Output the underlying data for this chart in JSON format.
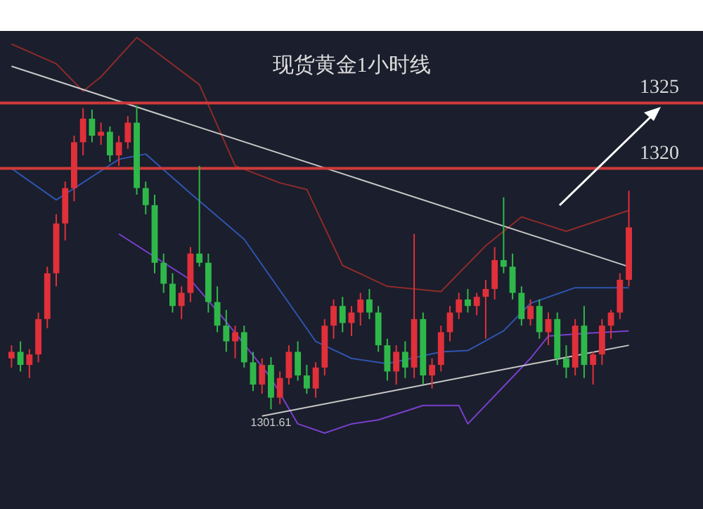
{
  "chart_data": {
    "type": "candlestick",
    "title": "现货黄金1小时线",
    "categories": [
      null,
      null,
      null,
      null,
      null,
      null,
      null,
      null,
      null,
      null,
      null,
      null,
      null,
      null,
      null,
      null,
      null,
      null,
      null,
      null,
      null,
      null,
      null,
      null,
      null,
      null,
      null,
      null,
      null,
      null,
      null,
      null,
      null,
      null,
      null,
      null,
      null,
      null,
      null,
      null,
      null,
      null,
      null,
      null,
      null,
      null,
      null,
      null,
      null,
      null,
      null,
      null,
      null,
      null,
      null,
      null,
      null,
      null,
      null,
      null,
      null,
      null,
      null,
      null,
      null,
      null,
      null,
      null,
      null,
      null
    ],
    "ylim": [
      1294,
      1330.5
    ],
    "ohlc": [
      [
        1305.5,
        1306.5,
        1304.8,
        1306.0
      ],
      [
        1306.0,
        1306.8,
        1304.5,
        1305.0
      ],
      [
        1305.0,
        1306.2,
        1304.0,
        1305.8
      ],
      [
        1305.8,
        1309.0,
        1305.2,
        1308.5
      ],
      [
        1308.5,
        1312.5,
        1307.8,
        1312.0
      ],
      [
        1312.0,
        1316.5,
        1311.0,
        1315.8
      ],
      [
        1315.8,
        1319.0,
        1314.5,
        1318.5
      ],
      [
        1318.5,
        1322.5,
        1317.5,
        1322.0
      ],
      [
        1322.0,
        1324.6,
        1321.0,
        1323.8
      ],
      [
        1323.8,
        1324.5,
        1322.0,
        1322.5
      ],
      [
        1322.5,
        1323.5,
        1321.8,
        1322.8
      ],
      [
        1322.8,
        1323.2,
        1320.5,
        1321.0
      ],
      [
        1321.0,
        1322.5,
        1320.2,
        1322.0
      ],
      [
        1322.0,
        1324.0,
        1321.5,
        1323.5
      ],
      [
        1323.5,
        1324.8,
        1318.0,
        1318.5
      ],
      [
        1318.5,
        1319.0,
        1316.5,
        1317.2
      ],
      [
        1317.2,
        1318.0,
        1312.0,
        1312.8
      ],
      [
        1312.8,
        1313.5,
        1310.5,
        1311.2
      ],
      [
        1311.2,
        1312.0,
        1309.0,
        1309.5
      ],
      [
        1309.5,
        1311.0,
        1308.5,
        1310.5
      ],
      [
        1310.5,
        1314.0,
        1309.8,
        1313.5
      ],
      [
        1313.5,
        1320.2,
        1312.5,
        1312.8
      ],
      [
        1312.8,
        1313.5,
        1309.0,
        1309.8
      ],
      [
        1309.8,
        1311.0,
        1307.5,
        1308.0
      ],
      [
        1308.0,
        1309.2,
        1306.0,
        1306.8
      ],
      [
        1306.8,
        1308.0,
        1305.5,
        1307.5
      ],
      [
        1307.5,
        1308.0,
        1304.8,
        1305.2
      ],
      [
        1305.2,
        1306.0,
        1303.0,
        1303.5
      ],
      [
        1303.5,
        1305.5,
        1302.8,
        1305.0
      ],
      [
        1305.0,
        1305.6,
        1301.61,
        1302.5
      ],
      [
        1302.5,
        1304.5,
        1302.0,
        1304.0
      ],
      [
        1304.0,
        1306.5,
        1303.5,
        1306.0
      ],
      [
        1306.0,
        1306.8,
        1303.8,
        1304.2
      ],
      [
        1304.2,
        1305.0,
        1302.8,
        1303.2
      ],
      [
        1303.2,
        1305.2,
        1302.5,
        1304.8
      ],
      [
        1304.8,
        1308.5,
        1304.2,
        1308.0
      ],
      [
        1308.0,
        1310.0,
        1307.0,
        1309.5
      ],
      [
        1309.5,
        1310.2,
        1307.5,
        1308.2
      ],
      [
        1308.2,
        1309.5,
        1307.2,
        1309.0
      ],
      [
        1309.0,
        1310.5,
        1308.0,
        1310.0
      ],
      [
        1310.0,
        1310.8,
        1308.5,
        1309.0
      ],
      [
        1309.0,
        1309.5,
        1306.0,
        1306.5
      ],
      [
        1306.5,
        1307.0,
        1303.8,
        1304.5
      ],
      [
        1304.5,
        1306.5,
        1303.5,
        1306.0
      ],
      [
        1306.0,
        1306.8,
        1304.0,
        1304.8
      ],
      [
        1304.8,
        1315.0,
        1304.0,
        1308.5
      ],
      [
        1308.5,
        1309.0,
        1303.5,
        1304.2
      ],
      [
        1304.2,
        1305.5,
        1303.2,
        1305.0
      ],
      [
        1305.0,
        1308.0,
        1304.5,
        1307.5
      ],
      [
        1307.5,
        1309.5,
        1306.8,
        1309.0
      ],
      [
        1309.0,
        1310.5,
        1308.5,
        1310.0
      ],
      [
        1310.0,
        1310.8,
        1309.0,
        1309.5
      ],
      [
        1309.5,
        1310.5,
        1308.8,
        1310.2
      ],
      [
        1310.2,
        1311.5,
        1307.0,
        1310.8
      ],
      [
        1310.8,
        1314.0,
        1310.0,
        1313.0
      ],
      [
        1313.0,
        1317.8,
        1312.0,
        1312.5
      ],
      [
        1312.5,
        1313.5,
        1310.0,
        1310.5
      ],
      [
        1310.5,
        1311.0,
        1308.0,
        1308.5
      ],
      [
        1308.5,
        1310.0,
        1308.0,
        1309.5
      ],
      [
        1309.5,
        1310.0,
        1307.0,
        1307.5
      ],
      [
        1307.5,
        1309.0,
        1306.5,
        1308.5
      ],
      [
        1308.5,
        1309.0,
        1305.0,
        1305.5
      ],
      [
        1305.5,
        1306.5,
        1304.0,
        1304.8
      ],
      [
        1304.8,
        1308.5,
        1304.2,
        1308.0
      ],
      [
        1308.0,
        1309.5,
        1304.0,
        1305.0
      ],
      [
        1305.0,
        1306.0,
        1303.5,
        1305.8
      ],
      [
        1305.8,
        1308.5,
        1305.0,
        1308.0
      ],
      [
        1308.0,
        1309.2,
        1307.0,
        1309.0
      ],
      [
        1309.0,
        1312.0,
        1308.5,
        1311.5
      ],
      [
        1311.5,
        1318.3,
        1311.0,
        1315.5
      ]
    ],
    "colors": [
      "#e0303a",
      "#2fb84a",
      "#e0303a",
      "#e0303a",
      "#e0303a",
      "#e0303a",
      "#e0303a",
      "#e0303a",
      "#e0303a",
      "#2fb84a",
      "#e0303a",
      "#2fb84a",
      "#e0303a",
      "#e0303a",
      "#2fb84a",
      "#2fb84a",
      "#2fb84a",
      "#2fb84a",
      "#2fb84a",
      "#e0303a",
      "#e0303a",
      "#2fb84a",
      "#2fb84a",
      "#2fb84a",
      "#2fb84a",
      "#e0303a",
      "#2fb84a",
      "#2fb84a",
      "#e0303a",
      "#2fb84a",
      "#e0303a",
      "#e0303a",
      "#2fb84a",
      "#2fb84a",
      "#e0303a",
      "#e0303a",
      "#e0303a",
      "#2fb84a",
      "#e0303a",
      "#e0303a",
      "#2fb84a",
      "#2fb84a",
      "#2fb84a",
      "#e0303a",
      "#2fb84a",
      "#e0303a",
      "#2fb84a",
      "#e0303a",
      "#e0303a",
      "#e0303a",
      "#e0303a",
      "#2fb84a",
      "#e0303a",
      "#e0303a",
      "#e0303a",
      "#2fb84a",
      "#2fb84a",
      "#2fb84a",
      "#e0303a",
      "#2fb84a",
      "#e0303a",
      "#2fb84a",
      "#2fb84a",
      "#e0303a",
      "#2fb84a",
      "#e0303a",
      "#e0303a",
      "#e0303a",
      "#e0303a",
      "#e0303a"
    ],
    "series": [
      {
        "type": "line",
        "color": "#8e2b2b",
        "values": [
          1329.5,
          null,
          null,
          null,
          null,
          1328.0,
          null,
          null,
          1325.9,
          null,
          1327.0,
          null,
          null,
          null,
          1330.0,
          null,
          null,
          null,
          null,
          null,
          null,
          1326.4,
          null,
          null,
          null,
          1320.2,
          null,
          null,
          null,
          null,
          1318.9,
          null,
          null,
          1318.4,
          null,
          null,
          null,
          1312.6,
          null,
          null,
          null,
          null,
          1311.0,
          null,
          null,
          null,
          null,
          null,
          1310.6,
          null,
          null,
          null,
          null,
          1314.1,
          null,
          null,
          null,
          1316.3,
          null,
          null,
          null,
          null,
          1315.2,
          null,
          null,
          null,
          null,
          null,
          null,
          1316.8
        ]
      },
      {
        "type": "line",
        "color": "#2f55b0",
        "values": [
          1320.0,
          null,
          null,
          null,
          null,
          1317.6,
          null,
          null,
          null,
          null,
          null,
          null,
          1320.7,
          null,
          null,
          1321.1,
          null,
          null,
          null,
          null,
          1318.1,
          null,
          null,
          null,
          null,
          null,
          1314.6,
          null,
          null,
          null,
          null,
          null,
          null,
          null,
          1306.8,
          null,
          null,
          null,
          1305.5,
          null,
          null,
          null,
          1305.1,
          null,
          null,
          null,
          null,
          null,
          1306.0,
          null,
          null,
          1306.1,
          null,
          null,
          null,
          1307.6,
          null,
          null,
          1309.7,
          null,
          null,
          null,
          null,
          1310.9,
          null,
          null,
          null,
          null,
          null,
          1310.9
        ]
      },
      {
        "type": "line",
        "color": "#7a3fd0",
        "values": [
          null,
          null,
          null,
          null,
          null,
          null,
          null,
          null,
          null,
          null,
          null,
          null,
          1315.0,
          null,
          null,
          null,
          null,
          null,
          null,
          null,
          1311.5,
          null,
          null,
          null,
          1308.3,
          null,
          null,
          null,
          null,
          1304.0,
          null,
          null,
          1300.5,
          null,
          null,
          1299.8,
          null,
          null,
          1300.5,
          null,
          null,
          1300.8,
          null,
          null,
          null,
          null,
          1301.9,
          null,
          null,
          null,
          1301.9,
          1300.5,
          null,
          null,
          null,
          null,
          null,
          null,
          1305.5,
          null,
          1307.2,
          null,
          null,
          null,
          1307.4,
          null,
          null,
          null,
          null,
          1307.6
        ]
      },
      {
        "type": "line",
        "color": "#c8c8c8",
        "values": [
          1327.8,
          null,
          null,
          null,
          null,
          null,
          null,
          null,
          null,
          null,
          null,
          null,
          null,
          null,
          null,
          null,
          null,
          null,
          null,
          null,
          null,
          null,
          null,
          null,
          null,
          null,
          null,
          null,
          null,
          null,
          null,
          null,
          null,
          null,
          null,
          null,
          null,
          null,
          null,
          null,
          null,
          null,
          null,
          null,
          null,
          null,
          null,
          null,
          null,
          null,
          null,
          null,
          null,
          null,
          null,
          null,
          null,
          null,
          null,
          null,
          null,
          null,
          null,
          null,
          null,
          null,
          null,
          null,
          null,
          1312.5
        ]
      },
      {
        "type": "line",
        "color": "#c8c8c8",
        "values": [
          null,
          null,
          null,
          null,
          null,
          null,
          null,
          null,
          null,
          null,
          null,
          null,
          null,
          null,
          null,
          null,
          null,
          null,
          null,
          null,
          null,
          null,
          null,
          null,
          null,
          null,
          null,
          null,
          1301.1,
          null,
          null,
          null,
          null,
          null,
          null,
          null,
          null,
          null,
          null,
          null,
          null,
          null,
          null,
          null,
          null,
          null,
          null,
          null,
          null,
          null,
          null,
          null,
          null,
          null,
          null,
          null,
          null,
          null,
          null,
          null,
          null,
          null,
          null,
          null,
          null,
          null,
          null,
          null,
          null,
          1306.5
        ]
      }
    ],
    "ref_lines": [
      {
        "axis": "y",
        "value": 1325,
        "label": "1325",
        "color": "#d03a3a"
      },
      {
        "axis": "y",
        "value": 1320,
        "label": "1320",
        "color": "#d03a3a"
      }
    ],
    "annotations": [
      {
        "text": "1301.61",
        "y": 1301.61
      }
    ]
  }
}
